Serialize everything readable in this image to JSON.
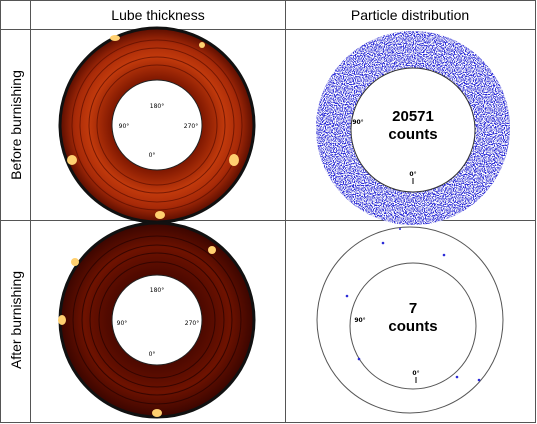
{
  "table": {
    "headers": [
      "Lube thickness",
      "Particle distribution"
    ],
    "rows": [
      {
        "label": "Before burnishing",
        "lube_angles": [
          "180°",
          "90°",
          "270°",
          "0°"
        ],
        "particle_angles": [
          "90°",
          "0°"
        ],
        "count": "20571",
        "count_unit": "counts"
      },
      {
        "label": "After burnishing",
        "lube_angles": [
          "180°",
          "90°",
          "270°",
          "0°"
        ],
        "particle_angles": [
          "90°",
          "0°"
        ],
        "count": "7",
        "count_unit": "counts"
      }
    ]
  }
}
